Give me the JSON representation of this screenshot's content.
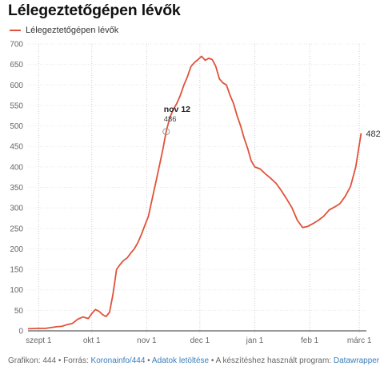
{
  "title": "Lélegeztetőgépen lévők",
  "legend": {
    "label": "Lélegeztetőgépen lévők",
    "color": "#e0523a"
  },
  "annotation": {
    "date": "nov 12",
    "value": "486"
  },
  "last_label": "482",
  "footer": {
    "prefix": "Grafikon: 444 • Forrás: ",
    "source_link": "Koronainfo/444",
    "sep1": " • ",
    "data_link": "Adatok letöltése",
    "sep2": " • A készítéshez használt program: ",
    "tool_link": "Datawrapper"
  },
  "chart_data": {
    "type": "line",
    "x_axis": {
      "type": "date",
      "min": "2020-08-26",
      "max": "2021-03-05",
      "ticks": [
        {
          "date": "2020-09-01",
          "label": "szept 1"
        },
        {
          "date": "2020-10-01",
          "label": "okt 1"
        },
        {
          "date": "2020-11-01",
          "label": "nov 1"
        },
        {
          "date": "2020-12-01",
          "label": "dec 1"
        },
        {
          "date": "2021-01-01",
          "label": "jan 1"
        },
        {
          "date": "2021-02-01",
          "label": "feb 1"
        },
        {
          "date": "2021-03-01",
          "label": "márc 1"
        }
      ]
    },
    "y_axis": {
      "min": 0,
      "max": 700,
      "ticks": [
        0,
        50,
        100,
        150,
        200,
        250,
        300,
        350,
        400,
        450,
        500,
        550,
        600,
        650,
        700
      ]
    },
    "grid": true,
    "series": [
      {
        "name": "Lélegeztetőgépen lévők",
        "color": "#e0523a",
        "points": [
          [
            "2020-08-26",
            5
          ],
          [
            "2020-09-01",
            6
          ],
          [
            "2020-09-05",
            6
          ],
          [
            "2020-09-08",
            8
          ],
          [
            "2020-09-11",
            10
          ],
          [
            "2020-09-14",
            11
          ],
          [
            "2020-09-17",
            15
          ],
          [
            "2020-09-20",
            18
          ],
          [
            "2020-09-23",
            28
          ],
          [
            "2020-09-26",
            34
          ],
          [
            "2020-09-29",
            30
          ],
          [
            "2020-10-01",
            42
          ],
          [
            "2020-10-03",
            52
          ],
          [
            "2020-10-05",
            48
          ],
          [
            "2020-10-07",
            40
          ],
          [
            "2020-10-09",
            35
          ],
          [
            "2020-10-11",
            45
          ],
          [
            "2020-10-13",
            90
          ],
          [
            "2020-10-15",
            150
          ],
          [
            "2020-10-17",
            162
          ],
          [
            "2020-10-19",
            172
          ],
          [
            "2020-10-21",
            178
          ],
          [
            "2020-10-23",
            190
          ],
          [
            "2020-10-25",
            200
          ],
          [
            "2020-10-27",
            215
          ],
          [
            "2020-10-29",
            235
          ],
          [
            "2020-10-31",
            258
          ],
          [
            "2020-11-02",
            280
          ],
          [
            "2020-11-04",
            320
          ],
          [
            "2020-11-06",
            360
          ],
          [
            "2020-11-08",
            400
          ],
          [
            "2020-11-10",
            440
          ],
          [
            "2020-11-12",
            486
          ],
          [
            "2020-11-14",
            520
          ],
          [
            "2020-11-16",
            540
          ],
          [
            "2020-11-18",
            555
          ],
          [
            "2020-11-20",
            575
          ],
          [
            "2020-11-22",
            600
          ],
          [
            "2020-11-24",
            620
          ],
          [
            "2020-11-26",
            645
          ],
          [
            "2020-11-28",
            655
          ],
          [
            "2020-11-30",
            662
          ],
          [
            "2020-12-02",
            670
          ],
          [
            "2020-12-04",
            660
          ],
          [
            "2020-12-06",
            665
          ],
          [
            "2020-12-08",
            662
          ],
          [
            "2020-12-10",
            645
          ],
          [
            "2020-12-12",
            615
          ],
          [
            "2020-12-14",
            605
          ],
          [
            "2020-12-16",
            600
          ],
          [
            "2020-12-18",
            575
          ],
          [
            "2020-12-20",
            555
          ],
          [
            "2020-12-22",
            525
          ],
          [
            "2020-12-24",
            500
          ],
          [
            "2020-12-26",
            470
          ],
          [
            "2020-12-28",
            445
          ],
          [
            "2020-12-30",
            415
          ],
          [
            "2021-01-01",
            400
          ],
          [
            "2021-01-04",
            395
          ],
          [
            "2021-01-07",
            383
          ],
          [
            "2021-01-10",
            372
          ],
          [
            "2021-01-13",
            360
          ],
          [
            "2021-01-16",
            342
          ],
          [
            "2021-01-19",
            322
          ],
          [
            "2021-01-22",
            300
          ],
          [
            "2021-01-25",
            270
          ],
          [
            "2021-01-28",
            252
          ],
          [
            "2021-01-31",
            255
          ],
          [
            "2021-02-03",
            262
          ],
          [
            "2021-02-06",
            270
          ],
          [
            "2021-02-09",
            280
          ],
          [
            "2021-02-12",
            295
          ],
          [
            "2021-02-15",
            302
          ],
          [
            "2021-02-18",
            310
          ],
          [
            "2021-02-21",
            328
          ],
          [
            "2021-02-24",
            352
          ],
          [
            "2021-02-27",
            400
          ],
          [
            "2021-03-02",
            482
          ]
        ]
      }
    ]
  }
}
